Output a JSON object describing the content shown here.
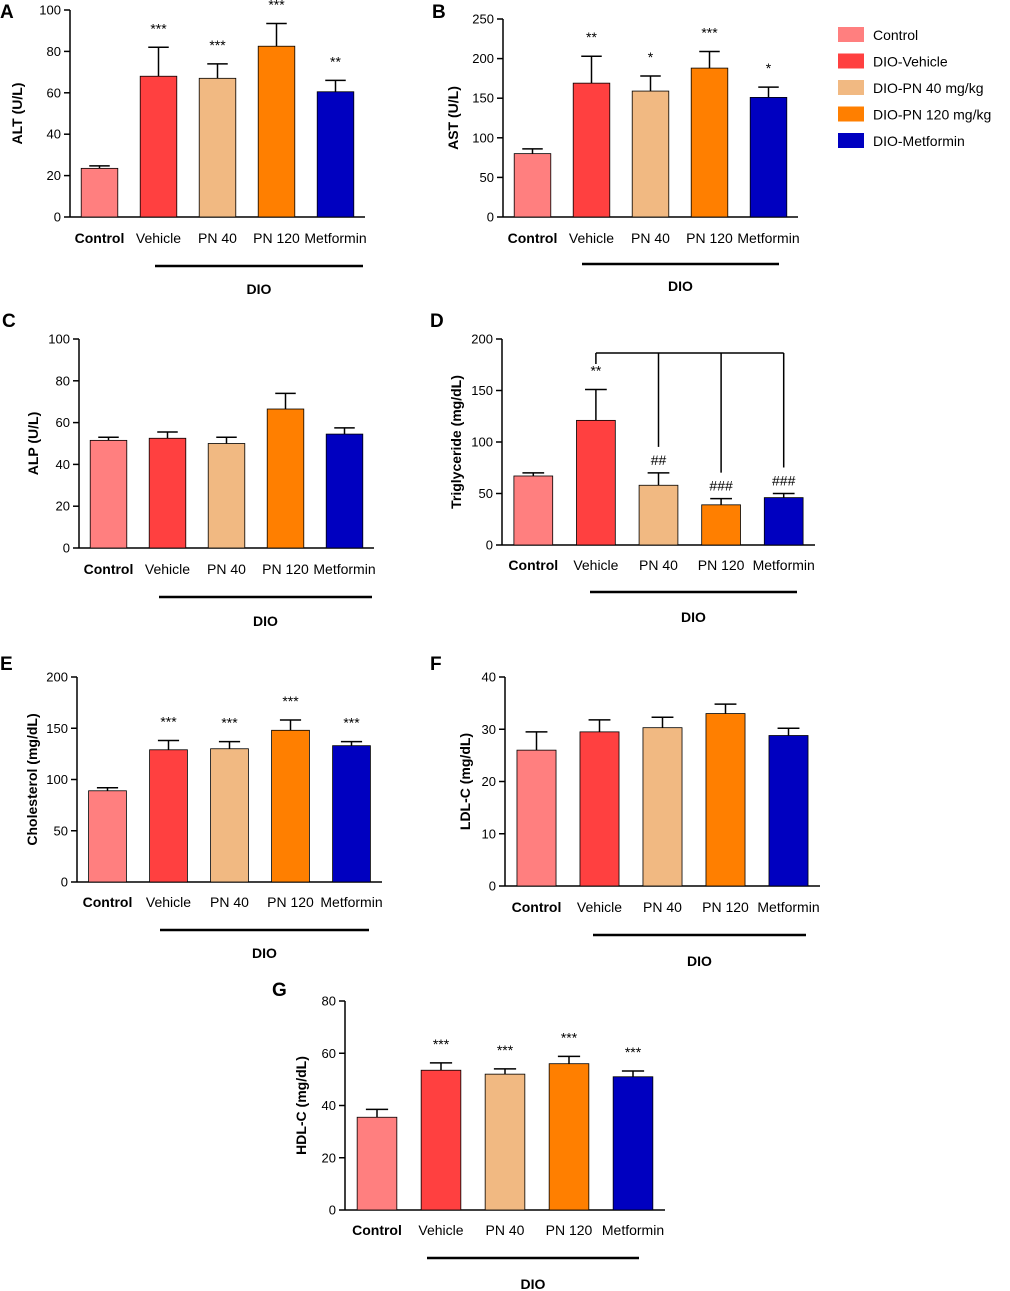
{
  "colors": {
    "Control": "#FF7F7F",
    "Vehicle": "#FF4040",
    "PN 40": "#F1B982",
    "PN 120": "#FF7F00",
    "Metformin": "#0000C0"
  },
  "legend": {
    "items": [
      {
        "label": "Control",
        "color": "#FF7F7F"
      },
      {
        "label": "DIO-Vehicle",
        "color": "#FF4040"
      },
      {
        "label": "DIO-PN 40 mg/kg",
        "color": "#F1B982"
      },
      {
        "label": "DIO-PN 120 mg/kg",
        "color": "#FF7F00"
      },
      {
        "label": "DIO-Metformin",
        "color": "#0000C0"
      }
    ]
  },
  "chart_data": [
    {
      "type": "bar",
      "panel": "A",
      "ylabel": "ALT (U/L)",
      "group_label": "DIO",
      "ylim": [
        0,
        100
      ],
      "yticks": [
        0,
        20,
        40,
        60,
        80,
        100
      ],
      "categories": [
        "Control",
        "Vehicle",
        "PN 40",
        "PN 120",
        "Metformin"
      ],
      "values": [
        23.5,
        68,
        67,
        82.5,
        60.5
      ],
      "errors": [
        1.2,
        14,
        7,
        11,
        5.5
      ],
      "annotations": [
        "",
        "***",
        "***",
        "***",
        "**"
      ]
    },
    {
      "type": "bar",
      "panel": "B",
      "ylabel": "AST (U/L)",
      "group_label": "DIO",
      "ylim": [
        0,
        250
      ],
      "yticks": [
        0,
        50,
        100,
        150,
        200,
        250
      ],
      "categories": [
        "Control",
        "Vehicle",
        "PN 40",
        "PN 120",
        "Metformin"
      ],
      "values": [
        80,
        169,
        159,
        188,
        151
      ],
      "errors": [
        6,
        34,
        19,
        21,
        13
      ],
      "annotations": [
        "",
        "**",
        "*",
        "***",
        "*"
      ]
    },
    {
      "type": "bar",
      "panel": "C",
      "ylabel": "ALP (U/L)",
      "group_label": "DIO",
      "ylim": [
        0,
        100
      ],
      "yticks": [
        0,
        20,
        40,
        60,
        80,
        100
      ],
      "categories": [
        "Control",
        "Vehicle",
        "PN 40",
        "PN 120",
        "Metformin"
      ],
      "values": [
        51.5,
        52.5,
        50,
        66.5,
        54.5
      ],
      "errors": [
        1.5,
        3,
        3,
        7.5,
        3
      ],
      "annotations": [
        "",
        "",
        "",
        "",
        ""
      ]
    },
    {
      "type": "bar",
      "panel": "D",
      "ylabel": "Triglyceride (mg/dL)",
      "group_label": "DIO",
      "ylim": [
        0,
        200
      ],
      "yticks": [
        0,
        50,
        100,
        150,
        200
      ],
      "categories": [
        "Control",
        "Vehicle",
        "PN 40",
        "PN 120",
        "Metformin"
      ],
      "values": [
        67,
        121,
        58,
        39,
        46
      ],
      "errors": [
        3,
        30,
        12,
        6,
        4
      ],
      "annotations": [
        "",
        "**",
        "##",
        "###",
        "###"
      ],
      "bracket": true
    },
    {
      "type": "bar",
      "panel": "E",
      "ylabel": "Cholesterol (mg/dL)",
      "group_label": "DIO",
      "ylim": [
        0,
        200
      ],
      "yticks": [
        0,
        50,
        100,
        150,
        200
      ],
      "categories": [
        "Control",
        "Vehicle",
        "PN 40",
        "PN 120",
        "Metformin"
      ],
      "values": [
        89,
        129,
        130,
        148,
        133
      ],
      "errors": [
        3,
        9,
        7,
        10,
        4
      ],
      "annotations": [
        "",
        "***",
        "***",
        "***",
        "***"
      ]
    },
    {
      "type": "bar",
      "panel": "F",
      "ylabel": "LDL-C (mg/dL)",
      "group_label": "DIO",
      "ylim": [
        0,
        40
      ],
      "yticks": [
        0,
        10,
        20,
        30,
        40
      ],
      "categories": [
        "Control",
        "Vehicle",
        "PN 40",
        "PN 120",
        "Metformin"
      ],
      "values": [
        26,
        29.5,
        30.3,
        33,
        28.8
      ],
      "errors": [
        3.5,
        2.3,
        2,
        1.8,
        1.4
      ],
      "annotations": [
        "",
        "",
        "",
        "",
        ""
      ]
    },
    {
      "type": "bar",
      "panel": "G",
      "ylabel": "HDL-C (mg/dL)",
      "group_label": "DIO",
      "ylim": [
        0,
        80
      ],
      "yticks": [
        0,
        20,
        40,
        60,
        80
      ],
      "categories": [
        "Control",
        "Vehicle",
        "PN 40",
        "PN 120",
        "Metformin"
      ],
      "values": [
        35.5,
        53.5,
        52,
        56,
        51
      ],
      "errors": [
        3,
        2.8,
        2,
        2.8,
        2.2
      ],
      "annotations": [
        "",
        "***",
        "***",
        "***",
        "***"
      ]
    }
  ]
}
